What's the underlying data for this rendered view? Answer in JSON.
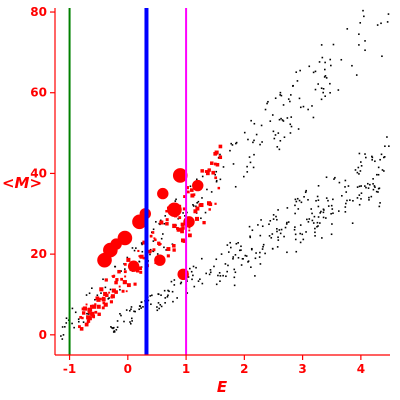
{
  "chart_data": {
    "type": "scatter",
    "xlabel": "E",
    "ylabel": "<M>",
    "xlim": [
      -1.25,
      4.5
    ],
    "ylim": [
      -5,
      81
    ],
    "x_ticks": [
      {
        "value": -1,
        "label": "-1"
      },
      {
        "value": 0,
        "label": "0"
      },
      {
        "value": 1,
        "label": "1"
      },
      {
        "value": 2,
        "label": "2"
      },
      {
        "value": 3,
        "label": "3"
      },
      {
        "value": 4,
        "label": "4"
      }
    ],
    "y_ticks": [
      {
        "value": 0,
        "label": "0"
      },
      {
        "value": 20,
        "label": "20"
      },
      {
        "value": 40,
        "label": "40"
      },
      {
        "value": 60,
        "label": "60"
      },
      {
        "value": 80,
        "label": "80"
      }
    ],
    "vertical_lines": [
      {
        "x": -1.0,
        "color": "#008000",
        "weight": "thin"
      },
      {
        "x": 0.32,
        "color": "#0000ff",
        "weight": "thick"
      },
      {
        "x": 1.0,
        "color": "#ff00ff",
        "weight": "thin"
      }
    ],
    "series": [
      {
        "color": "#000000",
        "marker": "small-dot",
        "bands": [
          {
            "x_start": -1.2,
            "x_end": 4.5,
            "y_start": 0,
            "y_end": 80,
            "spread": 7,
            "count": 220
          },
          {
            "x_start": -0.3,
            "x_end": 4.5,
            "y_start": 2,
            "y_end": 43,
            "spread": 5,
            "count": 230
          },
          {
            "x_start": 1.5,
            "x_end": 4.5,
            "y_start": 12,
            "y_end": 40,
            "spread": 6,
            "count": 70
          }
        ]
      },
      {
        "color": "#ff0000",
        "marker": "varying-size-square",
        "bands": [
          {
            "x_start": -0.85,
            "x_end": 1.6,
            "y_start": 3,
            "y_end": 39,
            "spread": 6,
            "count": 150
          }
        ],
        "large_points": [
          {
            "x": 0.9,
            "y": 39.5,
            "size": 3
          },
          {
            "x": 0.6,
            "y": 35,
            "size": 2
          },
          {
            "x": 0.8,
            "y": 31,
            "size": 3
          },
          {
            "x": 0.3,
            "y": 30,
            "size": 2
          },
          {
            "x": 0.2,
            "y": 28,
            "size": 3
          },
          {
            "x": -0.05,
            "y": 24,
            "size": 3
          },
          {
            "x": -0.2,
            "y": 22.5,
            "size": 2
          },
          {
            "x": -0.3,
            "y": 21,
            "size": 3
          },
          {
            "x": -0.4,
            "y": 18.5,
            "size": 3
          },
          {
            "x": 1.05,
            "y": 28,
            "size": 2
          },
          {
            "x": 1.2,
            "y": 37,
            "size": 2
          },
          {
            "x": 0.55,
            "y": 18.5,
            "size": 2
          },
          {
            "x": 0.95,
            "y": 15,
            "size": 2
          },
          {
            "x": 0.1,
            "y": 17,
            "size": 2
          }
        ]
      }
    ]
  }
}
